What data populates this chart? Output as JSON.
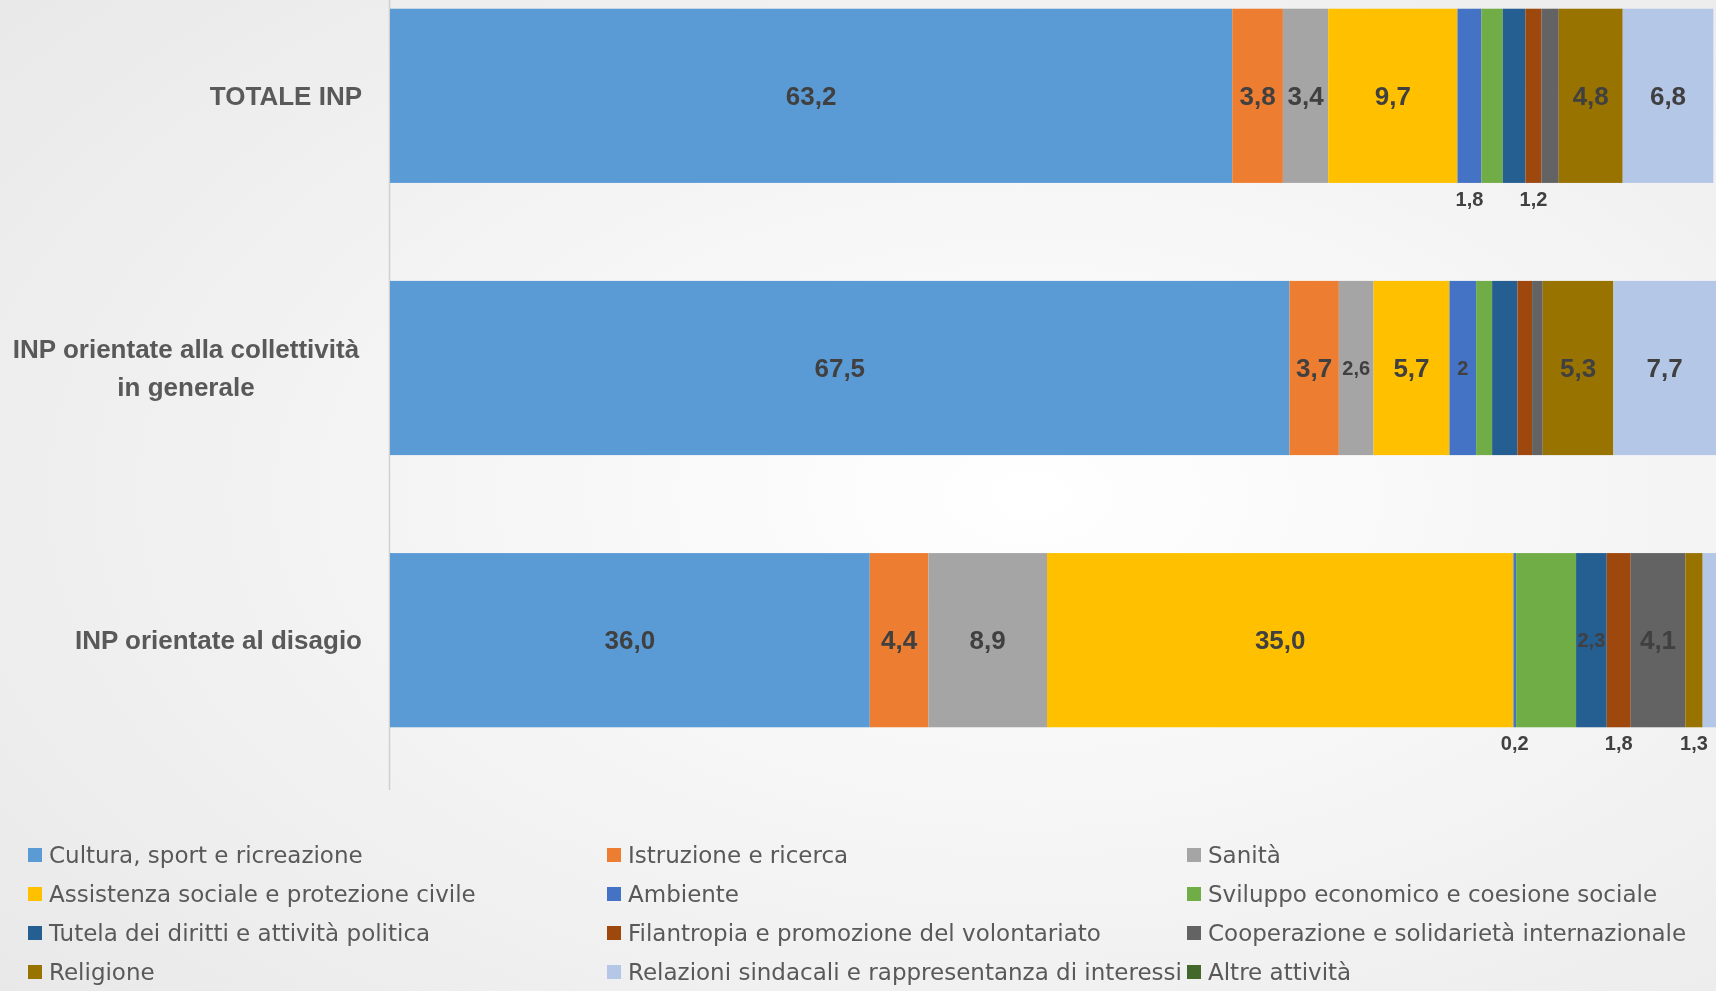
{
  "chart_data": {
    "type": "bar",
    "orientation": "horizontal",
    "stacked": true,
    "legend": "bottom",
    "grid": false,
    "tick_labels": "y",
    "categories": [
      "TOTALE INP",
      "INP orientate alla collettività in generale",
      "INP orientate al disagio"
    ],
    "series": [
      {
        "name": "Cultura, sport e ricreazione",
        "color": "#5b9bd5",
        "values": [
          63.2,
          67.5,
          36.0
        ],
        "value_labels": [
          "63,2",
          "67,5",
          "36,0"
        ]
      },
      {
        "name": "Istruzione e ricerca",
        "color": "#ed7d31",
        "values": [
          3.8,
          3.7,
          4.4
        ],
        "value_labels": [
          "3,8",
          "3,7",
          "4,4"
        ]
      },
      {
        "name": "Sanità",
        "color": "#a5a5a5",
        "values": [
          3.4,
          2.6,
          8.9
        ],
        "value_labels": [
          "3,4",
          "2,6",
          "8,9"
        ]
      },
      {
        "name": "Assistenza sociale e protezione civile",
        "color": "#ffc000",
        "values": [
          9.7,
          5.7,
          35.0
        ],
        "value_labels": [
          "9,7",
          "5,7",
          "35,0"
        ]
      },
      {
        "name": "Ambiente",
        "color": "#4472c4",
        "values": [
          1.8,
          2,
          0.2
        ],
        "value_labels": [
          "1,8",
          "2",
          "0,2"
        ]
      },
      {
        "name": "Sviluppo economico e coesione sociale",
        "color": "#70ad47",
        "values": [
          1.6,
          1.2,
          4.5
        ],
        "value_labels": [
          null,
          null,
          null
        ]
      },
      {
        "name": "Tutela dei diritti e attività politica",
        "color": "#255e91",
        "values": [
          1.7,
          1.9,
          2.3
        ],
        "value_labels": [
          null,
          null,
          "2,3"
        ]
      },
      {
        "name": "Filantropia e promozione del volontariato",
        "color": "#9e480e",
        "values": [
          1.2,
          1.1,
          1.8
        ],
        "value_labels": [
          "1,2",
          null,
          "1,8"
        ]
      },
      {
        "name": "Cooperazione e solidarietà internazionale",
        "color": "#636363",
        "values": [
          1.3,
          0.8,
          4.1
        ],
        "value_labels": [
          null,
          null,
          "4,1"
        ]
      },
      {
        "name": "Religione",
        "color": "#997300",
        "values": [
          4.8,
          5.3,
          1.3
        ],
        "value_labels": [
          "4,8",
          "5,3",
          "1,3"
        ]
      },
      {
        "name": "Relazioni sindacali e rappresentanza di interessi",
        "color": "#b4c7e7",
        "values": [
          6.8,
          7.7,
          1.0
        ],
        "value_labels": [
          "6,8",
          "7,7",
          null
        ]
      },
      {
        "name": "Altre attività",
        "color": "#43682b",
        "values": [
          0,
          0,
          0
        ],
        "value_labels": [
          null,
          null,
          null
        ]
      }
    ]
  }
}
